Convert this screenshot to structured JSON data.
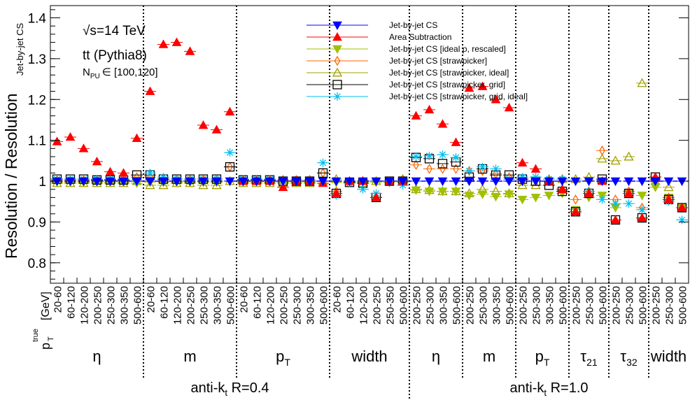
{
  "chart_data": {
    "type": "scatter",
    "ylabel": "Resolution / Resolution",
    "ylabel_sub": "Jet-by-jet CS",
    "xlabel_main": "p",
    "xlabel_sup": "true",
    "xlabel_sub": "T",
    "xlabel_unit": "[GeV]",
    "ylim": [
      0.75,
      1.43
    ],
    "yticks": [
      "0.8",
      "0.9",
      "1",
      "1.1",
      "1.2",
      "1.3",
      "1.4"
    ],
    "annotations": {
      "sqrt_s": "√s=14 TeV",
      "process": "tt (Pythia8)",
      "pileup_main": "N",
      "pileup_sub": "PU",
      "pileup_range": "∈ [100,120]"
    },
    "categories": [
      "20-60",
      "60-120",
      "120-200",
      "200-250",
      "250-300",
      "300-350",
      "500-600",
      "20-60",
      "60-120",
      "120-200",
      "200-250",
      "250-300",
      "300-350",
      "500-600",
      "20-60",
      "60-120",
      "120-200",
      "200-250",
      "250-300",
      "300-350",
      "500-600",
      "20-60",
      "60-120",
      "120-200",
      "200-250",
      "250-350",
      "500-600",
      "200-250",
      "250-300",
      "300-350",
      "500-600",
      "200-250",
      "250-300",
      "300-350",
      "500-600",
      "200-250",
      "250-300",
      "300-350",
      "500-600",
      "200-250",
      "250-300",
      "500-600",
      "200-250",
      "250-300",
      "500-600",
      "200-250",
      "250-300",
      "500-600"
    ],
    "sections": [
      {
        "label": "η",
        "sub": "",
        "from": 0,
        "to": 7
      },
      {
        "label": "m",
        "sub": "",
        "from": 7,
        "to": 14
      },
      {
        "label": "p",
        "sub": "T",
        "from": 14,
        "to": 21
      },
      {
        "label": "width",
        "sub": "",
        "from": 21,
        "to": 27
      },
      {
        "label": "η",
        "sub": "",
        "from": 27,
        "to": 31
      },
      {
        "label": "m",
        "sub": "",
        "from": 31,
        "to": 35
      },
      {
        "label": "p",
        "sub": "T",
        "from": 35,
        "to": 39
      },
      {
        "label": "τ",
        "sub": "21",
        "from": 39,
        "to": 42
      },
      {
        "label": "τ",
        "sub": "32",
        "from": 42,
        "to": 45
      },
      {
        "label": "width",
        "sub": "",
        "from": 45,
        "to": 48
      }
    ],
    "groups": [
      {
        "label": "anti-k",
        "sub": "t",
        "suffix": " R=0.4",
        "from": 0,
        "to": 27
      },
      {
        "label": "anti-k",
        "sub": "t",
        "suffix": " R=1.0",
        "from": 27,
        "to": 48
      }
    ],
    "series": [
      {
        "name": "Jet-by-jet CS",
        "color": "#0000ff",
        "marker": "triangle-down-filled",
        "values": [
          1,
          1,
          1,
          1,
          1,
          1,
          1,
          1,
          1,
          1,
          1,
          1,
          1,
          1,
          1,
          1,
          1,
          1,
          1,
          1,
          1,
          1,
          1,
          1,
          1,
          1,
          1,
          1,
          1,
          1,
          1,
          1,
          1,
          1,
          1,
          1,
          1,
          1,
          1,
          1,
          1,
          1,
          1,
          1,
          1,
          1,
          1,
          1
        ]
      },
      {
        "name": "Area Subtraction",
        "color": "#ff0000",
        "marker": "triangle-up-filled",
        "values": [
          1.097,
          1.108,
          1.08,
          1.048,
          1.023,
          1.02,
          1.105,
          1.22,
          1.335,
          1.34,
          1.318,
          1.137,
          1.126,
          1.17,
          1.0,
          1.0,
          1.0,
          0.985,
          1.0,
          1.0,
          0.995,
          0.97,
          1.0,
          1.0,
          0.96,
          1.0,
          1.0,
          1.16,
          1.175,
          1.14,
          1.095,
          1.228,
          1.232,
          1.2,
          1.18,
          1.045,
          1.03,
          1.0,
          0.98,
          0.925,
          0.97,
          1.0,
          0.905,
          0.97,
          0.91,
          1.01,
          0.955,
          0.935
        ]
      },
      {
        "name": "Jet-by-jet CS [ideal ρ, rescaled]",
        "color": "#a0c000",
        "marker": "triangle-down-filled",
        "values": [
          0.998,
          0.997,
          0.997,
          0.997,
          0.997,
          0.997,
          0.995,
          0.997,
          0.997,
          0.997,
          0.997,
          0.997,
          0.997,
          1.0,
          0.997,
          0.997,
          0.997,
          0.997,
          0.997,
          0.997,
          1.0,
          0.997,
          0.997,
          0.997,
          0.997,
          0.997,
          0.997,
          0.978,
          0.975,
          0.975,
          0.975,
          0.965,
          0.968,
          0.962,
          0.968,
          0.955,
          0.96,
          0.965,
          0.97,
          0.93,
          0.96,
          0.965,
          0.935,
          0.97,
          0.965,
          0.985,
          0.96,
          0.935
        ]
      },
      {
        "name": "Jet-by-jet CS [strawpicker]",
        "color": "#ff6600",
        "marker": "diamond-open",
        "values": [
          1.003,
          1.003,
          1.003,
          1.003,
          1.003,
          1.003,
          1.01,
          1.01,
          1.005,
          1.005,
          1.005,
          1.005,
          1.005,
          1.035,
          1.003,
          1.003,
          1.003,
          1.003,
          1.003,
          1.003,
          1.02,
          0.975,
          0.997,
          1.0,
          0.96,
          1.0,
          1.0,
          1.04,
          1.03,
          1.03,
          1.03,
          1.025,
          1.025,
          1.018,
          1.01,
          1.0,
          1.0,
          1.0,
          0.98,
          0.955,
          0.975,
          1.075,
          0.955,
          0.975,
          0.935,
          1.005,
          0.96,
          0.935
        ]
      },
      {
        "name": "Jet-by-jet CS [strawpicker, ideal]",
        "color": "#a0a000",
        "marker": "triangle-up-open",
        "values": [
          0.995,
          0.995,
          0.995,
          0.995,
          0.995,
          0.995,
          1.0,
          0.99,
          0.99,
          0.995,
          0.995,
          0.99,
          0.99,
          1.0,
          0.995,
          0.995,
          0.995,
          0.995,
          0.995,
          0.995,
          1.0,
          1.005,
          1.0,
          0.995,
          1.0,
          1.0,
          1.005,
          0.98,
          0.978,
          0.975,
          0.975,
          0.97,
          0.98,
          0.975,
          0.97,
          0.99,
          0.99,
          1.005,
          1.005,
          1.005,
          1.01,
          1.055,
          1.05,
          1.06,
          1.24,
          1.0,
          0.985,
          0.935
        ]
      },
      {
        "name": "Jet-by-jet CS [strawpicker, grid]",
        "color": "#000000",
        "marker": "square-open",
        "values": [
          1.005,
          1.005,
          1.005,
          1.003,
          1.003,
          1.003,
          1.015,
          1.015,
          1.005,
          1.005,
          1.005,
          1.005,
          1.005,
          1.035,
          1.003,
          1.003,
          1.003,
          1.0,
          1.0,
          1.0,
          1.02,
          0.97,
          0.997,
          0.995,
          0.96,
          1.0,
          1.0,
          1.058,
          1.055,
          1.043,
          1.047,
          1.01,
          1.03,
          1.015,
          1.015,
          1.005,
          1.0,
          0.99,
          0.975,
          0.925,
          0.97,
          1.005,
          0.905,
          0.97,
          0.91,
          1.01,
          0.955,
          0.935
        ]
      },
      {
        "name": "Jet-by-jet CS [strawpicker, grid, ideal]",
        "color": "#00c0f0",
        "marker": "star",
        "values": [
          1.005,
          1.005,
          1.005,
          1.005,
          1.005,
          1.005,
          1.0,
          1.02,
          1.01,
          1.005,
          1.005,
          1.005,
          1.005,
          1.07,
          1.005,
          1.005,
          1.005,
          1.0,
          1.0,
          1.0,
          1.045,
          0.965,
          0.995,
          0.98,
          0.97,
          1.0,
          0.99,
          1.06,
          1.062,
          1.065,
          1.058,
          1.025,
          1.035,
          1.03,
          1.005,
          1.01,
          1.01,
          1.005,
          1.005,
          0.925,
          0.975,
          0.955,
          0.945,
          0.945,
          0.93,
          1.0,
          0.95,
          0.905
        ]
      }
    ]
  }
}
